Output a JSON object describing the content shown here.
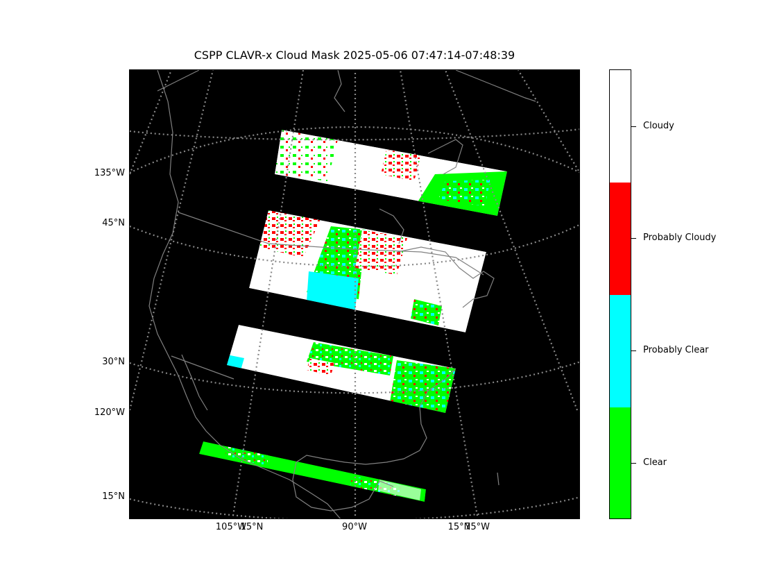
{
  "title": "CSPP CLAVR-x Cloud Mask 2025-05-06 07:47:14-07:48:39",
  "map": {
    "background": "#000000",
    "coastline_color": "#808080",
    "grid_color": "#888888",
    "lat_labels": [
      "135°W",
      "45°N",
      "30°N",
      "120°W",
      "15°N"
    ],
    "lon_labels": [
      "105°W",
      "15°N",
      "90°W",
      "15°N",
      "75°W"
    ]
  },
  "colorbar": {
    "categories": [
      {
        "label": "Cloudy",
        "color": "#ffffff"
      },
      {
        "label": "Probably Cloudy",
        "color": "#ff0000"
      },
      {
        "label": "Probably Clear",
        "color": "#00ffff"
      },
      {
        "label": "Clear",
        "color": "#00ff00"
      }
    ]
  }
}
